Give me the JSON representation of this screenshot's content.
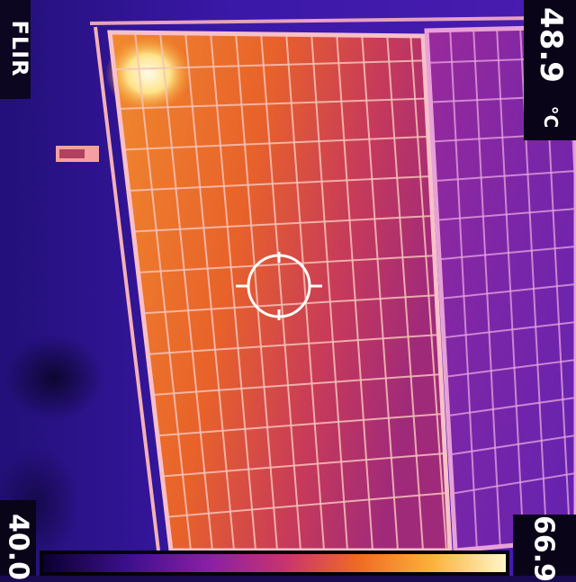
{
  "brand": {
    "text": "FLIR",
    "icon": "flir-logo"
  },
  "spot_temperature": {
    "value": "48.9",
    "unit": "°C"
  },
  "color_scale": {
    "min": "40.0",
    "max": "66.9",
    "gradient_colors": [
      "#0b0030",
      "#3b0f8c",
      "#8a1fa6",
      "#c7336f",
      "#ef6a24",
      "#fbb13a",
      "#fff6c8"
    ]
  },
  "crosshair": {
    "icon": "spot-meter-crosshair-icon"
  },
  "palette": {
    "cold_panel": "#7a2aa8",
    "hot_panel": "#e8742a",
    "frame": "#f3b0b8",
    "hotspot": "#fff8e0",
    "background": "#2a129a"
  }
}
